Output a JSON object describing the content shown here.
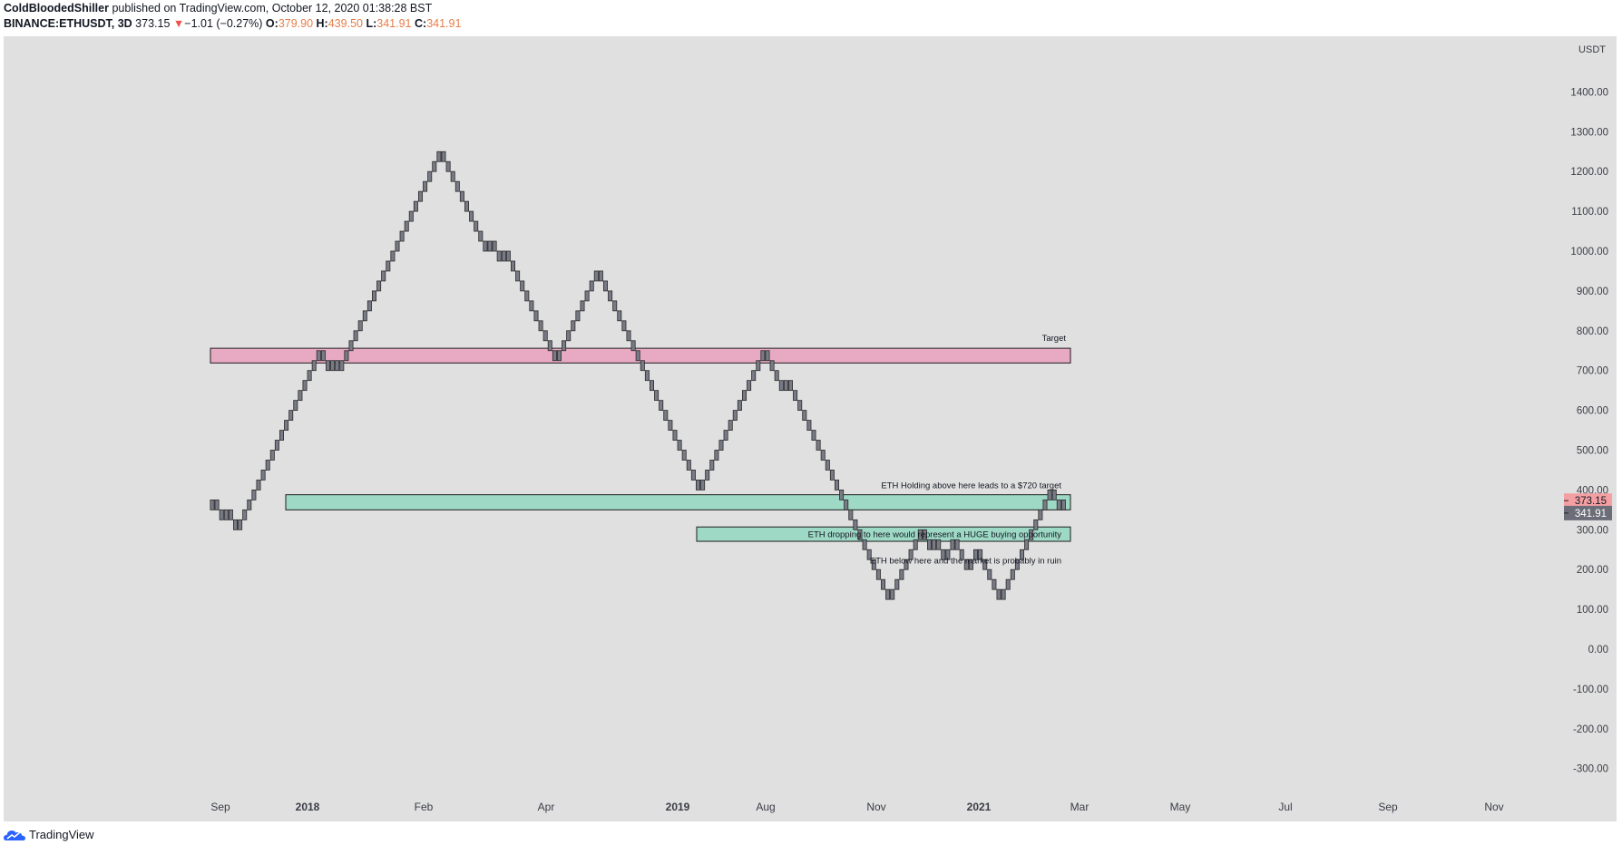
{
  "header": {
    "author": "ColdBloodedShiller",
    "published_text": "published on TradingView.com, October 12, 2020 01:38:28 BST",
    "symbol": "BINANCE:ETHUSDT, 3D",
    "last": "373.15",
    "change_arrow": "▼",
    "change": "−1.01 (−0.27%)",
    "o_label": "O:",
    "o_value": "379.90",
    "h_label": "H:",
    "h_value": "439.50",
    "l_label": "L:",
    "l_value": "341.91",
    "c_label": "C:",
    "c_value": "341.91"
  },
  "footer": {
    "brand": "TradingView"
  },
  "colors": {
    "background": "#e0e0e0",
    "brick": "#787b86",
    "target_zone": "#e8a9c2",
    "support_zone": "#9ed9c5",
    "price_label_red": "#f4a0a3",
    "price_label_gray": "#6b6e78"
  },
  "chart_data": {
    "type": "renko",
    "currency_label": "USDT",
    "y_ticks": [
      1400,
      1300,
      1200,
      1100,
      1000,
      900,
      800,
      700,
      600,
      500,
      400,
      300,
      200,
      100,
      0,
      -100,
      -200,
      -300
    ],
    "ylim": [
      -350,
      1470
    ],
    "x_ticks": [
      {
        "label": "Sep",
        "bold": false
      },
      {
        "label": "2018",
        "bold": true
      },
      {
        "label": "Feb",
        "bold": false
      },
      {
        "label": "Apr",
        "bold": false
      },
      {
        "label": "2019",
        "bold": true
      },
      {
        "label": "Aug",
        "bold": false
      },
      {
        "label": "Nov",
        "bold": false
      },
      {
        "label": "2021",
        "bold": true
      },
      {
        "label": "Mar",
        "bold": false
      },
      {
        "label": "May",
        "bold": false
      },
      {
        "label": "Jul",
        "bold": false
      },
      {
        "label": "Sep",
        "bold": false
      },
      {
        "label": "Nov",
        "bold": false
      }
    ],
    "brick_size": 25,
    "renko_path": [
      [
        1,
        375
      ],
      [
        -1,
        325
      ],
      [
        1,
        350
      ],
      [
        -1,
        300
      ],
      [
        1,
        400
      ],
      [
        1,
        750
      ],
      [
        -1,
        700
      ],
      [
        1,
        725
      ],
      [
        -1,
        700
      ],
      [
        1,
        725
      ],
      [
        1,
        1250
      ],
      [
        -1,
        1000
      ],
      [
        1,
        1025
      ],
      [
        -1,
        975
      ],
      [
        1,
        1000
      ],
      [
        -1,
        725
      ],
      [
        1,
        950
      ],
      [
        -1,
        825
      ],
      [
        -1,
        400
      ],
      [
        1,
        750
      ],
      [
        -1,
        650
      ],
      [
        1,
        675
      ],
      [
        -1,
        375
      ],
      [
        -1,
        125
      ],
      [
        1,
        300
      ],
      [
        -1,
        250
      ],
      [
        1,
        275
      ],
      [
        -1,
        225
      ],
      [
        1,
        275
      ],
      [
        -1,
        200
      ],
      [
        1,
        250
      ],
      [
        -1,
        125
      ],
      [
        1,
        400
      ],
      [
        -1,
        350
      ],
      [
        1,
        375
      ]
    ],
    "zones": [
      {
        "from": 719,
        "to": 756,
        "label": "Target",
        "color": "#e8a9c2"
      },
      {
        "from": 350,
        "to": 388,
        "label": "ETH Holding above here leads to a $720 target",
        "color": "#9ed9c5"
      },
      {
        "from": 271,
        "to": 307,
        "label": "ETH dropping to here would represent a HUGE buying opportunity",
        "color": "#9ed9c5"
      }
    ],
    "annotations": [
      {
        "text": "ETH below here and the market is probably in ruin",
        "y": 215
      }
    ],
    "price_labels": [
      {
        "value": 373.15,
        "text": "373.15",
        "color": "#f4a0a3"
      },
      {
        "value": 341.91,
        "text": "341.91",
        "color": "#6b6e78"
      }
    ]
  }
}
